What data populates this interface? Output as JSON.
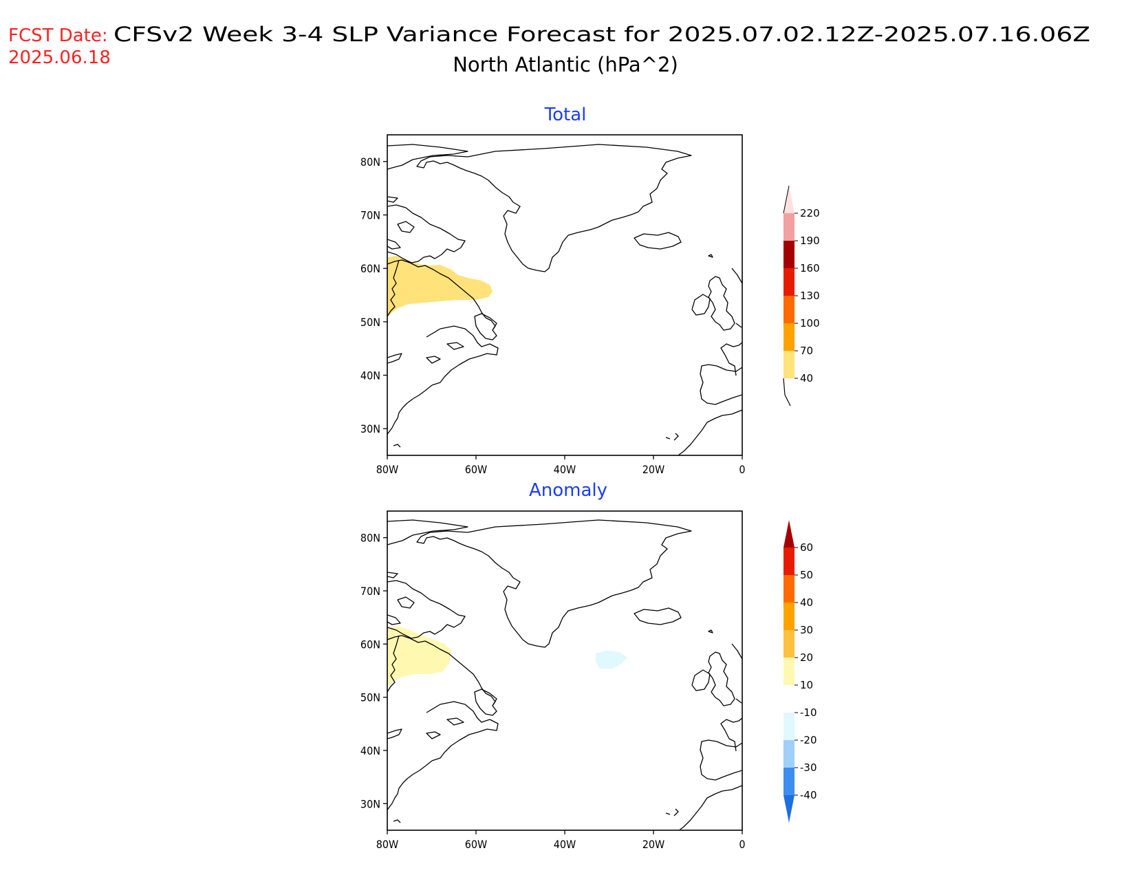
{
  "header": {
    "fcst_label": "FCST Date:",
    "fcst_date": "2025.06.18",
    "title_line1": "CFSv2 Week 3-4 SLP Variance Forecast for 2025.07.02.12Z-2025.07.16.06Z",
    "title_line2": "North Atlantic (hPa^2)"
  },
  "colors": {
    "fcst_red": "#ff2020",
    "panel_title_blue": "#1a3cff",
    "coast": "#000000"
  },
  "axes": {
    "lon_ticks": [
      "80W",
      "60W",
      "40W",
      "20W",
      "0"
    ],
    "lat_ticks": [
      "30N",
      "40N",
      "50N",
      "60N",
      "70N",
      "80N"
    ],
    "lon_range": [
      -80,
      0
    ],
    "lat_range": [
      25,
      85
    ]
  },
  "panels": [
    {
      "title": "Total",
      "colorbar": {
        "labels": [
          "40",
          "70",
          "100",
          "130",
          "160",
          "190",
          "220"
        ],
        "colors": [
          "#ffe27a",
          "#ffa200",
          "#ff6a00",
          "#e81c00",
          "#a50000",
          "#f2a0a0",
          "#fde0e0"
        ]
      }
    },
    {
      "title": "Anomaly",
      "colorbar": {
        "labels": [
          "-40",
          "-30",
          "-20",
          "-10",
          "10",
          "20",
          "30",
          "40",
          "50",
          "60"
        ],
        "colors": [
          "#1e6fe0",
          "#3c8ef0",
          "#a0d0f8",
          "#e0f8ff",
          "#ffffff",
          "#fff8b0",
          "#ffc040",
          "#ffa200",
          "#ff6a00",
          "#e81c00",
          "#a50000"
        ]
      }
    }
  ]
}
